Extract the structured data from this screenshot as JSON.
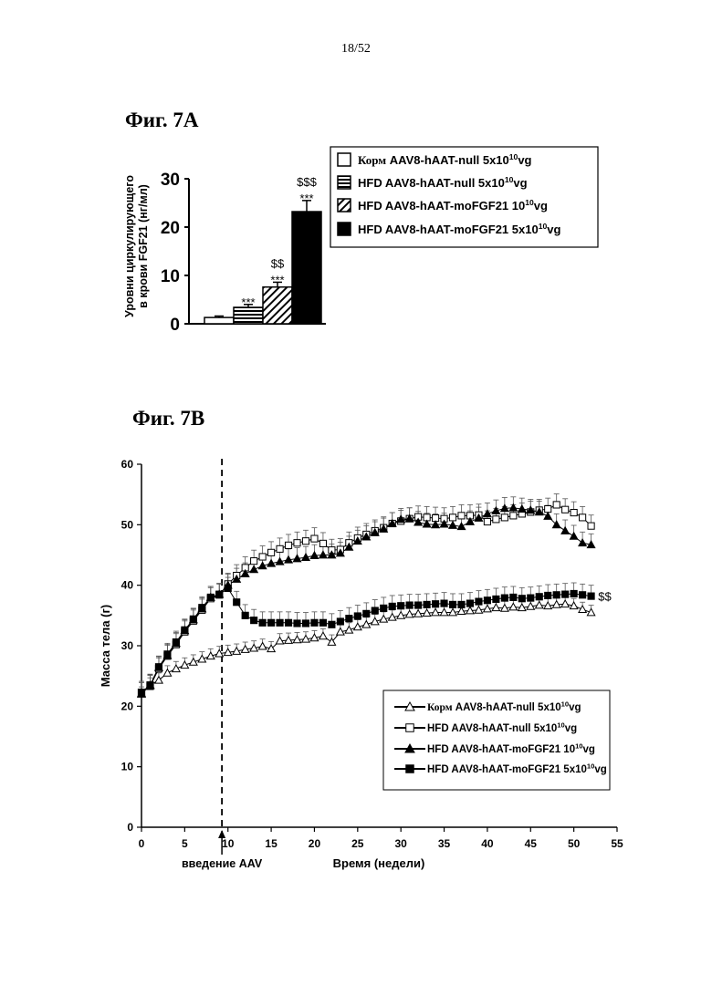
{
  "page": {
    "number": "18/52"
  },
  "chart_data": [
    {
      "type": "bar",
      "title": "Фиг. 7A",
      "ylabel_line1": "Уровни циркулирующего",
      "ylabel_line2": "в крови FGF21 (нг/мл)",
      "ylim": [
        0,
        30
      ],
      "yticks": [
        0,
        10,
        20,
        30
      ],
      "legend_position": "top-right",
      "categories": [
        "Корм AAV8-hAAT-null 5x10^10vg",
        "HFD AAV8-hAAT-null 5x10^10vg",
        "HFD AAV8-hAAT-moFGF21 10^10vg",
        "HFD AAV8-hAAT-moFGF21 5x10^10vg"
      ],
      "series": [
        {
          "name": "Корм AAV8-hAAT-null 5x10^10vg",
          "value": 1.3,
          "error": 0.3,
          "fill": "white",
          "annotation": []
        },
        {
          "name": "HFD AAV8-hAAT-null 5x10^10vg",
          "value": 3.4,
          "error": 0.6,
          "fill": "horizontal-stripes",
          "annotation": [
            "***"
          ]
        },
        {
          "name": "HFD AAV8-hAAT-moFGF21 10^10vg",
          "value": 7.6,
          "error": 1.0,
          "fill": "diagonal-stripes",
          "annotation": [
            "***",
            "$$"
          ]
        },
        {
          "name": "HFD AAV8-hAAT-moFGF21 5x10^10vg",
          "value": 23.2,
          "error": 2.3,
          "fill": "black",
          "annotation": [
            "***",
            "$$$"
          ]
        }
      ],
      "legend": [
        {
          "base": "Корм",
          "rest": " AAV8-hAAT-null 5x10",
          "sup": "10",
          "tail": "vg"
        },
        {
          "base": "HFD",
          "rest": " AAV8-hAAT-null 5x10",
          "sup": "10",
          "tail": "vg"
        },
        {
          "base": "HFD",
          "rest": " AAV8-hAAT-moFGF21 10",
          "sup": "10",
          "tail": "vg"
        },
        {
          "base": "HFD",
          "rest": " AAV8-hAAT-moFGF21 5x10",
          "sup": "10",
          "tail": "vg"
        }
      ]
    },
    {
      "type": "line",
      "title": "Фиг. 7B",
      "xlabel": "Время (недели)",
      "ylabel": "Масса тела (г)",
      "xlim": [
        0,
        55
      ],
      "ylim": [
        0,
        60
      ],
      "xticks": [
        0,
        5,
        10,
        15,
        20,
        25,
        30,
        35,
        40,
        45,
        50,
        55
      ],
      "yticks": [
        0,
        10,
        20,
        30,
        40,
        50,
        60
      ],
      "vline": {
        "x": 9.3,
        "label": "введение AAV"
      },
      "end_annotation": "$$",
      "legend_position": "lower-right",
      "x": [
        0,
        1,
        2,
        3,
        4,
        5,
        6,
        7,
        8,
        9,
        10,
        11,
        12,
        13,
        14,
        15,
        16,
        17,
        18,
        19,
        20,
        21,
        22,
        23,
        24,
        25,
        26,
        27,
        28,
        29,
        30,
        31,
        32,
        33,
        34,
        35,
        36,
        37,
        38,
        39,
        40,
        41,
        42,
        43,
        44,
        45,
        46,
        47,
        48,
        49,
        50,
        51,
        52
      ],
      "series": [
        {
          "name": "Корм AAV8-hAAT-null 5x10^10vg",
          "marker": "triangle-open",
          "error": 1.2,
          "values": [
            22.0,
            23.5,
            24.3,
            25.5,
            26.2,
            26.8,
            27.3,
            27.8,
            28.3,
            28.7,
            28.9,
            29.1,
            29.4,
            29.6,
            29.9,
            29.5,
            30.8,
            30.9,
            31.0,
            31.1,
            31.3,
            31.6,
            30.6,
            32.3,
            32.6,
            33.1,
            33.5,
            34.0,
            34.4,
            34.7,
            35.0,
            35.2,
            35.3,
            35.4,
            35.5,
            35.5,
            35.5,
            35.7,
            35.8,
            35.9,
            36.1,
            36.3,
            36.2,
            36.4,
            36.3,
            36.5,
            36.7,
            36.6,
            36.8,
            36.9,
            36.6,
            36.0,
            35.5
          ]
        },
        {
          "name": "HFD AAV8-hAAT-null 5x10^10vg",
          "marker": "square-open",
          "error": 1.8,
          "values": [
            22.3,
            23.3,
            26.2,
            28.3,
            30.2,
            32.3,
            34.1,
            35.9,
            37.8,
            38.4,
            40.2,
            41.6,
            42.9,
            44.0,
            44.7,
            45.4,
            46.0,
            46.6,
            47.0,
            47.3,
            47.7,
            46.9,
            45.8,
            45.9,
            47.0,
            47.8,
            48.4,
            49.0,
            49.5,
            50.2,
            50.6,
            51.0,
            51.3,
            51.2,
            51.1,
            51.0,
            51.2,
            51.5,
            51.5,
            51.6,
            50.5,
            50.9,
            51.2,
            51.5,
            51.8,
            52.1,
            52.4,
            52.6,
            53.3,
            52.5,
            52.0,
            51.2,
            49.8
          ]
        },
        {
          "name": "HFD AAV8-hAAT-moFGF21 10^10vg",
          "marker": "triangle-filled",
          "error": 1.8,
          "values": [
            22.1,
            23.4,
            26.4,
            28.4,
            30.4,
            32.5,
            34.3,
            36.1,
            38.0,
            38.5,
            40.0,
            41.0,
            41.9,
            42.6,
            43.2,
            43.6,
            43.9,
            44.2,
            44.4,
            44.6,
            44.9,
            45.0,
            45.0,
            45.3,
            46.3,
            47.3,
            48.0,
            48.7,
            49.3,
            50.2,
            50.9,
            51.0,
            50.4,
            50.1,
            50.0,
            50.1,
            49.9,
            49.7,
            50.5,
            51.1,
            51.8,
            52.3,
            52.7,
            52.8,
            52.6,
            52.4,
            52.1,
            51.4,
            50.0,
            49.0,
            48.1,
            47.0,
            46.7
          ]
        },
        {
          "name": "HFD AAV8-hAAT-moFGF21 5x10^10vg",
          "marker": "square-filled",
          "error": 1.8,
          "values": [
            22.3,
            23.5,
            26.5,
            28.6,
            30.6,
            32.6,
            34.4,
            36.3,
            38.0,
            38.5,
            39.5,
            37.2,
            35.0,
            34.2,
            33.8,
            33.8,
            33.8,
            33.8,
            33.7,
            33.7,
            33.8,
            33.8,
            33.5,
            34.0,
            34.5,
            34.9,
            35.3,
            35.8,
            36.2,
            36.5,
            36.6,
            36.7,
            36.7,
            36.8,
            36.9,
            37.0,
            36.8,
            36.8,
            37.0,
            37.3,
            37.5,
            37.7,
            37.9,
            38.0,
            37.8,
            37.9,
            38.1,
            38.3,
            38.4,
            38.5,
            38.6,
            38.4,
            38.2
          ]
        }
      ],
      "legend": [
        {
          "base": "Корм",
          "rest": " AAV8-hAAT-null 5x10",
          "sup": "10",
          "tail": "vg"
        },
        {
          "base": "HFD",
          "rest": " AAV8-hAAT-null 5x10",
          "sup": "10",
          "tail": "vg"
        },
        {
          "base": "HFD",
          "rest": " AAV8-hAAT-moFGF21 10",
          "sup": "10",
          "tail": "vg"
        },
        {
          "base": "HFD",
          "rest": " AAV8-hAAT-moFGF21 5x10",
          "sup": "10",
          "tail": "vg"
        }
      ]
    }
  ]
}
